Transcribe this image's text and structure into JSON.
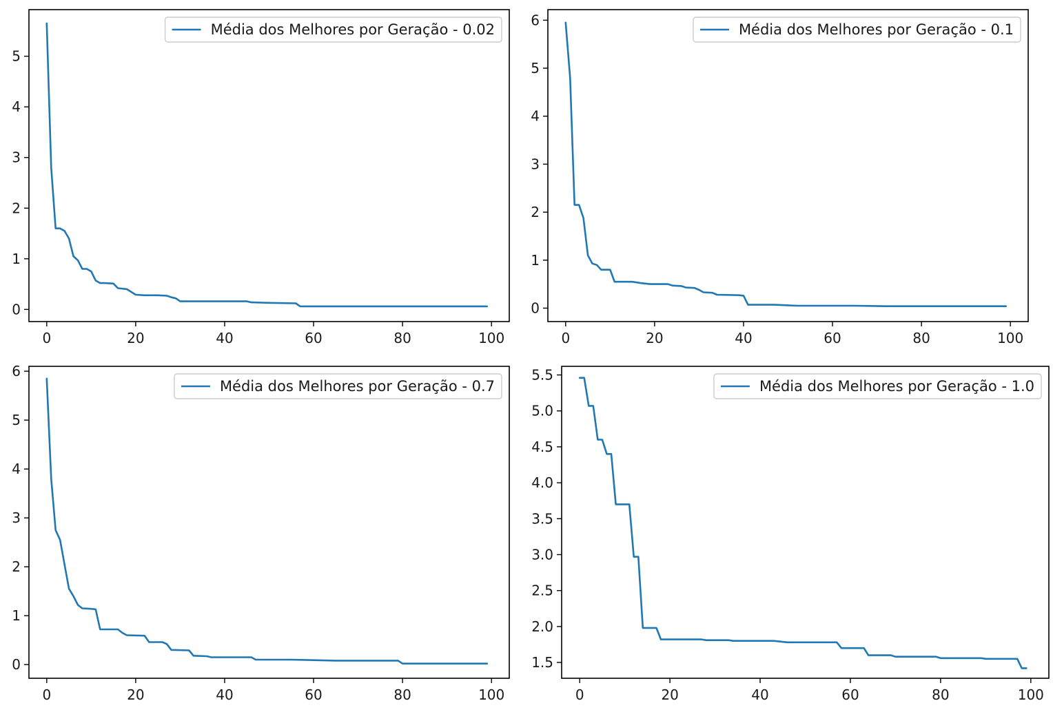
{
  "chart_data": [
    {
      "type": "line",
      "title": "",
      "xlabel": "",
      "ylabel": "",
      "xlim": [
        -4,
        104
      ],
      "ylim": [
        -0.24,
        5.92
      ],
      "xticks": [
        0,
        20,
        40,
        60,
        80,
        100
      ],
      "yticks": [
        0,
        1,
        2,
        3,
        4,
        5
      ],
      "xtick_labels": [
        "0",
        "20",
        "40",
        "60",
        "80",
        "100"
      ],
      "ytick_labels": [
        "0",
        "1",
        "2",
        "3",
        "4",
        "5"
      ],
      "grid": false,
      "legend_position": "top-right",
      "series": [
        {
          "name": "Média dos Melhores por Geração - 0.02",
          "color": "#1f77b4",
          "points": [
            [
              0,
              5.65
            ],
            [
              1,
              2.8
            ],
            [
              2,
              1.6
            ],
            [
              3,
              1.6
            ],
            [
              4,
              1.55
            ],
            [
              5,
              1.4
            ],
            [
              6,
              1.05
            ],
            [
              7,
              0.97
            ],
            [
              8,
              0.8
            ],
            [
              9,
              0.8
            ],
            [
              10,
              0.75
            ],
            [
              11,
              0.57
            ],
            [
              12,
              0.52
            ],
            [
              13,
              0.52
            ],
            [
              15,
              0.51
            ],
            [
              16,
              0.42
            ],
            [
              18,
              0.4
            ],
            [
              20,
              0.29
            ],
            [
              22,
              0.28
            ],
            [
              25,
              0.28
            ],
            [
              27,
              0.27
            ],
            [
              28,
              0.24
            ],
            [
              29,
              0.22
            ],
            [
              30,
              0.16
            ],
            [
              35,
              0.16
            ],
            [
              45,
              0.16
            ],
            [
              46,
              0.14
            ],
            [
              50,
              0.13
            ],
            [
              56,
              0.12
            ],
            [
              57,
              0.06
            ],
            [
              60,
              0.06
            ],
            [
              70,
              0.06
            ],
            [
              80,
              0.06
            ],
            [
              90,
              0.06
            ],
            [
              99,
              0.06
            ]
          ]
        }
      ]
    },
    {
      "type": "line",
      "title": "",
      "xlabel": "",
      "ylabel": "",
      "xlim": [
        -4,
        104
      ],
      "ylim": [
        -0.28,
        6.22
      ],
      "xticks": [
        0,
        20,
        40,
        60,
        80,
        100
      ],
      "yticks": [
        0,
        1,
        2,
        3,
        4,
        5,
        6
      ],
      "xtick_labels": [
        "0",
        "20",
        "40",
        "60",
        "80",
        "100"
      ],
      "ytick_labels": [
        "0",
        "1",
        "2",
        "3",
        "4",
        "5",
        "6"
      ],
      "grid": false,
      "legend_position": "top-right",
      "series": [
        {
          "name": "Média dos Melhores por Geração - 0.1",
          "color": "#1f77b4",
          "points": [
            [
              0,
              5.95
            ],
            [
              1,
              4.8
            ],
            [
              2,
              2.15
            ],
            [
              3,
              2.15
            ],
            [
              4,
              1.88
            ],
            [
              5,
              1.1
            ],
            [
              6,
              0.93
            ],
            [
              7,
              0.9
            ],
            [
              8,
              0.8
            ],
            [
              10,
              0.8
            ],
            [
              11,
              0.55
            ],
            [
              15,
              0.55
            ],
            [
              17,
              0.52
            ],
            [
              19,
              0.5
            ],
            [
              23,
              0.5
            ],
            [
              24,
              0.47
            ],
            [
              26,
              0.46
            ],
            [
              27,
              0.43
            ],
            [
              29,
              0.42
            ],
            [
              30,
              0.38
            ],
            [
              31,
              0.33
            ],
            [
              33,
              0.32
            ],
            [
              34,
              0.28
            ],
            [
              39,
              0.27
            ],
            [
              40,
              0.26
            ],
            [
              41,
              0.07
            ],
            [
              47,
              0.07
            ],
            [
              52,
              0.05
            ],
            [
              60,
              0.05
            ],
            [
              65,
              0.05
            ],
            [
              72,
              0.04
            ],
            [
              80,
              0.04
            ],
            [
              99,
              0.04
            ]
          ]
        }
      ]
    },
    {
      "type": "line",
      "title": "",
      "xlabel": "",
      "ylabel": "",
      "xlim": [
        -4,
        104
      ],
      "ylim": [
        -0.28,
        6.1
      ],
      "xticks": [
        0,
        20,
        40,
        60,
        80,
        100
      ],
      "yticks": [
        0,
        1,
        2,
        3,
        4,
        5,
        6
      ],
      "xtick_labels": [
        "0",
        "20",
        "40",
        "60",
        "80",
        "100"
      ],
      "ytick_labels": [
        "0",
        "1",
        "2",
        "3",
        "4",
        "5",
        "6"
      ],
      "grid": false,
      "legend_position": "top-right",
      "series": [
        {
          "name": "Média dos Melhores por Geração - 0.7",
          "color": "#1f77b4",
          "points": [
            [
              0,
              5.85
            ],
            [
              1,
              3.8
            ],
            [
              2,
              2.75
            ],
            [
              3,
              2.55
            ],
            [
              4,
              2.05
            ],
            [
              5,
              1.55
            ],
            [
              6,
              1.4
            ],
            [
              7,
              1.22
            ],
            [
              8,
              1.15
            ],
            [
              10,
              1.14
            ],
            [
              11,
              1.13
            ],
            [
              12,
              0.72
            ],
            [
              16,
              0.72
            ],
            [
              17,
              0.65
            ],
            [
              18,
              0.6
            ],
            [
              22,
              0.59
            ],
            [
              23,
              0.46
            ],
            [
              26,
              0.46
            ],
            [
              27,
              0.42
            ],
            [
              28,
              0.3
            ],
            [
              32,
              0.29
            ],
            [
              33,
              0.18
            ],
            [
              36,
              0.17
            ],
            [
              37,
              0.15
            ],
            [
              46,
              0.15
            ],
            [
              47,
              0.1
            ],
            [
              55,
              0.1
            ],
            [
              60,
              0.09
            ],
            [
              65,
              0.08
            ],
            [
              79,
              0.08
            ],
            [
              80,
              0.02
            ],
            [
              90,
              0.02
            ],
            [
              99,
              0.02
            ]
          ]
        }
      ]
    },
    {
      "type": "line",
      "title": "",
      "xlabel": "",
      "ylabel": "",
      "xlim": [
        -4,
        104
      ],
      "ylim": [
        1.28,
        5.62
      ],
      "xticks": [
        0,
        20,
        40,
        60,
        80,
        100
      ],
      "yticks": [
        1.5,
        2.0,
        2.5,
        3.0,
        3.5,
        4.0,
        4.5,
        5.0,
        5.5
      ],
      "xtick_labels": [
        "0",
        "20",
        "40",
        "60",
        "80",
        "100"
      ],
      "ytick_labels": [
        "1.5",
        "2.0",
        "2.5",
        "3.0",
        "3.5",
        "4.0",
        "4.5",
        "5.0",
        "5.5"
      ],
      "grid": false,
      "legend_position": "top-right",
      "series": [
        {
          "name": "Média dos Melhores por Geração - 1.0",
          "color": "#1f77b4",
          "points": [
            [
              0,
              5.46
            ],
            [
              1,
              5.46
            ],
            [
              2,
              5.07
            ],
            [
              3,
              5.07
            ],
            [
              4,
              4.6
            ],
            [
              5,
              4.6
            ],
            [
              6,
              4.4
            ],
            [
              7,
              4.4
            ],
            [
              8,
              3.7
            ],
            [
              11,
              3.7
            ],
            [
              12,
              2.97
            ],
            [
              13,
              2.97
            ],
            [
              14,
              1.98
            ],
            [
              17,
              1.98
            ],
            [
              18,
              1.82
            ],
            [
              27,
              1.82
            ],
            [
              28,
              1.81
            ],
            [
              33,
              1.81
            ],
            [
              34,
              1.8
            ],
            [
              43,
              1.8
            ],
            [
              46,
              1.78
            ],
            [
              57,
              1.78
            ],
            [
              58,
              1.7
            ],
            [
              63,
              1.7
            ],
            [
              64,
              1.6
            ],
            [
              69,
              1.6
            ],
            [
              70,
              1.58
            ],
            [
              79,
              1.58
            ],
            [
              80,
              1.56
            ],
            [
              89,
              1.56
            ],
            [
              90,
              1.55
            ],
            [
              97,
              1.55
            ],
            [
              98,
              1.42
            ],
            [
              99,
              1.42
            ]
          ]
        }
      ]
    }
  ]
}
